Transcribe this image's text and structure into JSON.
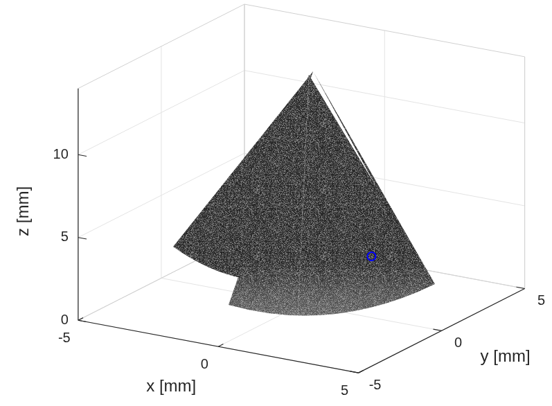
{
  "chart_data": {
    "type": "scatter3d",
    "xlabel": "x [mm]",
    "ylabel": "y [mm]",
    "zlabel": "z [mm]",
    "xlim": [
      -5,
      5
    ],
    "ylim": [
      -5,
      5
    ],
    "zlim": [
      0,
      14
    ],
    "xticks": [
      -5,
      0,
      5
    ],
    "yticks": [
      -5,
      0,
      5
    ],
    "zticks": [
      0,
      5,
      10
    ],
    "grid": true,
    "x": [
      2.5
    ],
    "y": [
      0
    ],
    "z": [
      3.7
    ],
    "color": "#0000ff",
    "marker": "circle"
  }
}
